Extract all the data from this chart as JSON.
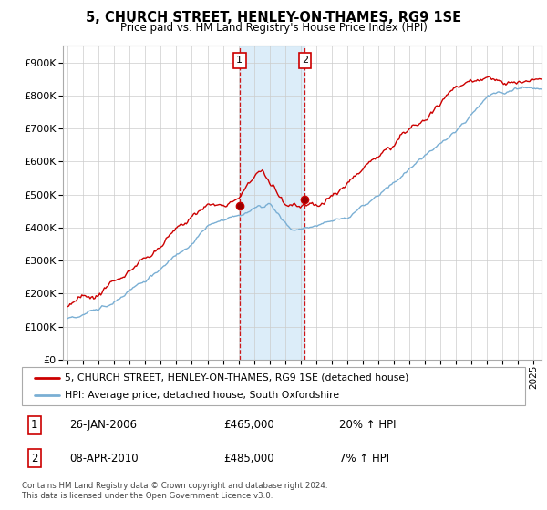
{
  "title": "5, CHURCH STREET, HENLEY-ON-THAMES, RG9 1SE",
  "subtitle": "Price paid vs. HM Land Registry's House Price Index (HPI)",
  "legend_line1": "5, CHURCH STREET, HENLEY-ON-THAMES, RG9 1SE (detached house)",
  "legend_line2": "HPI: Average price, detached house, South Oxfordshire",
  "annotation1_date": "26-JAN-2006",
  "annotation1_price": "£465,000",
  "annotation1_change": "20% ↑ HPI",
  "annotation2_date": "08-APR-2010",
  "annotation2_price": "£485,000",
  "annotation2_change": "7% ↑ HPI",
  "footer": "Contains HM Land Registry data © Crown copyright and database right 2024.\nThis data is licensed under the Open Government Licence v3.0.",
  "red_color": "#cc0000",
  "blue_color": "#7aafd4",
  "vline1_x": 2006.07,
  "vline2_x": 2010.27,
  "shade_color": "#d6eaf8",
  "sale1_x": 2006.07,
  "sale1_y": 465000,
  "sale2_x": 2010.27,
  "sale2_y": 485000,
  "ylim": [
    0,
    950000
  ],
  "xlim": [
    1994.7,
    2025.5
  ]
}
